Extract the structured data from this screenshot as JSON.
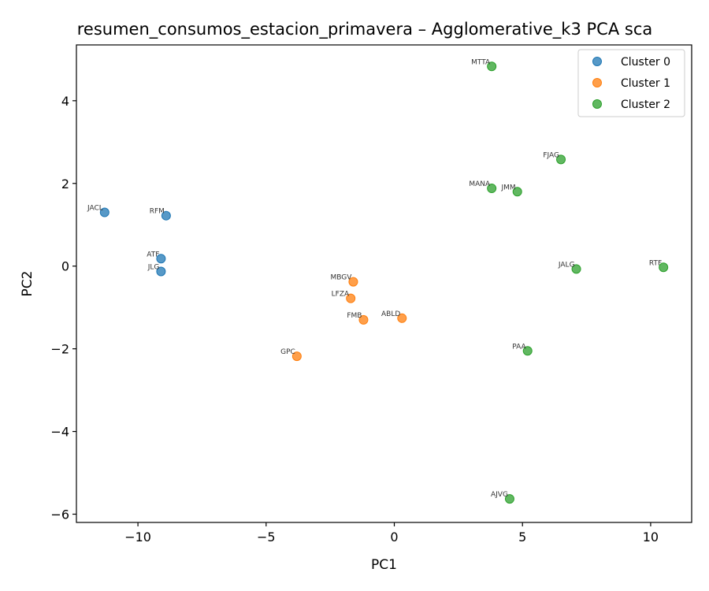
{
  "chart_data": {
    "type": "scatter",
    "title": "resumen_consumos_estacion_primavera – Agglomerative_k3 PCA sca",
    "xlabel": "PC1",
    "ylabel": "PC2",
    "xlim": [
      -12.4,
      11.6
    ],
    "ylim": [
      -6.2,
      5.35
    ],
    "xticks": [
      -10,
      -5,
      0,
      5,
      10
    ],
    "yticks": [
      -6,
      -4,
      -2,
      0,
      2,
      4
    ],
    "xtick_labels": [
      "−10",
      "−5",
      "0",
      "5",
      "10"
    ],
    "ytick_labels": [
      "−6",
      "−4",
      "−2",
      "0",
      "2",
      "4"
    ],
    "grid": false,
    "legend_position": "top-right",
    "series": [
      {
        "name": "Cluster 0",
        "color": "#1f77b4",
        "points": [
          {
            "label": "JACL",
            "x": -11.3,
            "y": 1.3
          },
          {
            "label": "RFM",
            "x": -8.9,
            "y": 1.22
          },
          {
            "label": "ATF",
            "x": -9.1,
            "y": 0.18
          },
          {
            "label": "JLG",
            "x": -9.1,
            "y": -0.13
          }
        ]
      },
      {
        "name": "Cluster 1",
        "color": "#ff7f0e",
        "points": [
          {
            "label": "MBGV",
            "x": -1.6,
            "y": -0.38
          },
          {
            "label": "LFZA",
            "x": -1.7,
            "y": -0.78
          },
          {
            "label": "FMB",
            "x": -1.2,
            "y": -1.3
          },
          {
            "label": "ABLD",
            "x": 0.3,
            "y": -1.26
          },
          {
            "label": "GPC",
            "x": -3.8,
            "y": -2.18
          }
        ]
      },
      {
        "name": "Cluster 2",
        "color": "#2ca02c",
        "points": [
          {
            "label": "MTTA",
            "x": 3.8,
            "y": 4.83
          },
          {
            "label": "FJAG",
            "x": 6.5,
            "y": 2.58
          },
          {
            "label": "MANA",
            "x": 3.8,
            "y": 1.88
          },
          {
            "label": "JMM",
            "x": 4.8,
            "y": 1.8
          },
          {
            "label": "JALG",
            "x": 7.1,
            "y": -0.07
          },
          {
            "label": "RTF",
            "x": 10.5,
            "y": -0.03
          },
          {
            "label": "PAA",
            "x": 5.2,
            "y": -2.05
          },
          {
            "label": "AJVG",
            "x": 4.5,
            "y": -5.63
          }
        ]
      }
    ]
  }
}
